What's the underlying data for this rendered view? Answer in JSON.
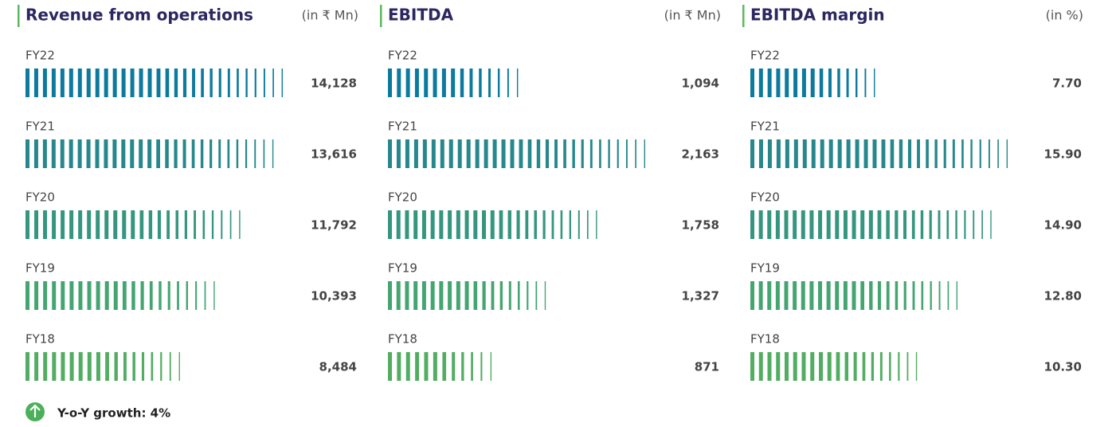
{
  "chart_data": [
    {
      "type": "bar",
      "title": "Revenue from operations",
      "unit": "(in ₹ Mn)",
      "categories": [
        "FY22",
        "FY21",
        "FY20",
        "FY19",
        "FY18"
      ],
      "values": [
        14128,
        13616,
        11792,
        10393,
        8484
      ],
      "value_labels": [
        "14,128",
        "13,616",
        "11,792",
        "10,393",
        "8,484"
      ],
      "colors": [
        "#0b7a9e",
        "#26878c",
        "#35967f",
        "#45a571",
        "#52ad62"
      ]
    },
    {
      "type": "bar",
      "title": "EBITDA",
      "unit": "(in ₹ Mn)",
      "categories": [
        "FY22",
        "FY21",
        "FY20",
        "FY19",
        "FY18"
      ],
      "values": [
        1094,
        2163,
        1758,
        1327,
        871
      ],
      "value_labels": [
        "1,094",
        "2,163",
        "1,758",
        "1,327",
        "871"
      ],
      "colors": [
        "#0b7a9e",
        "#26878c",
        "#35967f",
        "#45a571",
        "#52ad62"
      ]
    },
    {
      "type": "bar",
      "title": "EBITDA margin",
      "unit": "(in %)",
      "categories": [
        "FY22",
        "FY21",
        "FY20",
        "FY19",
        "FY18"
      ],
      "values": [
        7.7,
        15.9,
        14.9,
        12.8,
        10.3
      ],
      "value_labels": [
        "7.70",
        "15.90",
        "14.90",
        "12.80",
        "10.30"
      ],
      "colors": [
        "#0b7a9e",
        "#26878c",
        "#35967f",
        "#45a571",
        "#52ad62"
      ]
    }
  ],
  "footnote": "Y-o-Y growth: 4%"
}
